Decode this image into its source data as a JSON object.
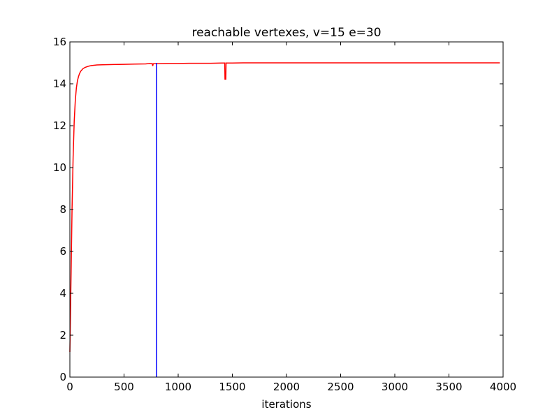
{
  "chart_data": {
    "type": "line",
    "title": "reachable vertexes, v=15 e=30",
    "xlabel": "iterations",
    "ylabel": "",
    "xlim": [
      0,
      4000
    ],
    "ylim": [
      0,
      16
    ],
    "xticks": [
      0,
      500,
      1000,
      1500,
      2000,
      2500,
      3000,
      3500,
      4000
    ],
    "xtick_labels": [
      "0",
      "500",
      "1000",
      "1500",
      "2000",
      "2500",
      "3000",
      "3500",
      "4000"
    ],
    "yticks": [
      0,
      2,
      4,
      6,
      8,
      10,
      12,
      14,
      16
    ],
    "ytick_labels": [
      "0",
      "2",
      "4",
      "6",
      "8",
      "10",
      "12",
      "14",
      "16"
    ],
    "grid": false,
    "legend": false,
    "series": [
      {
        "color": "#ff0000",
        "x": [
          0,
          10,
          20,
          30,
          40,
          50,
          60,
          70,
          80,
          90,
          100,
          120,
          140,
          160,
          180,
          200,
          250,
          300,
          400,
          500,
          600,
          700,
          740,
          760,
          765,
          770,
          780,
          800,
          900,
          1000,
          1100,
          1200,
          1300,
          1400,
          1430,
          1432,
          1440,
          1442,
          1450,
          1500,
          1600,
          1800,
          2000,
          2500,
          3000,
          3500,
          3970
        ],
        "y": [
          1.2,
          4.5,
          8.0,
          10.5,
          12.2,
          13.2,
          13.8,
          14.15,
          14.35,
          14.5,
          14.6,
          14.72,
          14.78,
          14.82,
          14.85,
          14.87,
          14.9,
          14.91,
          14.92,
          14.93,
          14.94,
          14.95,
          14.97,
          14.96,
          14.85,
          14.96,
          14.96,
          14.96,
          14.97,
          14.97,
          14.98,
          14.98,
          14.98,
          14.99,
          14.99,
          14.22,
          14.22,
          14.99,
          14.99,
          14.99,
          15.0,
          15.0,
          15.0,
          15.0,
          15.0,
          15.0,
          15.0
        ]
      },
      {
        "color": "#0000ff",
        "x": [
          800,
          800
        ],
        "y": [
          0,
          15.0
        ]
      }
    ]
  }
}
